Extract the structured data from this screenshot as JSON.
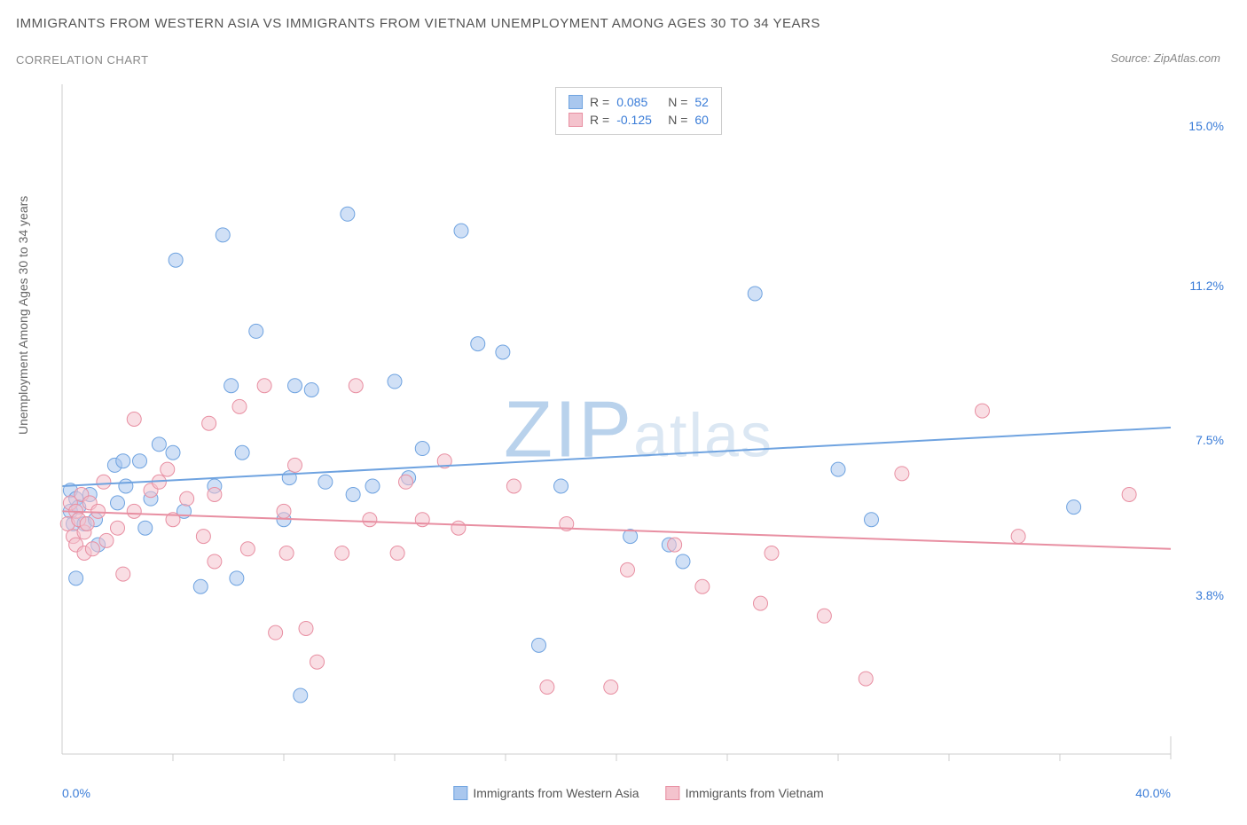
{
  "title": "IMMIGRANTS FROM WESTERN ASIA VS IMMIGRANTS FROM VIETNAM UNEMPLOYMENT AMONG AGES 30 TO 34 YEARS",
  "subtitle": "CORRELATION CHART",
  "source_label": "Source:",
  "source_value": "ZipAtlas.com",
  "y_axis_label": "Unemployment Among Ages 30 to 34 years",
  "watermark_a": "ZIP",
  "watermark_b": "atlas",
  "chart": {
    "type": "scatter",
    "xlim": [
      0,
      40
    ],
    "ylim": [
      0,
      16
    ],
    "x_ticks": [
      {
        "value": 0,
        "label": "0.0%",
        "edge": "left"
      },
      {
        "value": 40,
        "label": "40.0%",
        "edge": "right"
      }
    ],
    "y_ticks": [
      {
        "value": 3.8,
        "label": "3.8%"
      },
      {
        "value": 7.5,
        "label": "7.5%"
      },
      {
        "value": 11.2,
        "label": "11.2%"
      },
      {
        "value": 15.0,
        "label": "15.0%"
      }
    ],
    "x_grid_positions": [
      4,
      8,
      12,
      16,
      20,
      24,
      28,
      32,
      36
    ],
    "background_color": "#ffffff",
    "border_color": "#cccccc",
    "point_radius": 8,
    "point_opacity": 0.55,
    "line_width": 2,
    "series": [
      {
        "key": "western_asia",
        "label": "Immigrants from Western Asia",
        "color_fill": "#a9c7ee",
        "color_stroke": "#6fa3e0",
        "r_value": "0.085",
        "n_value": "52",
        "trend": {
          "y_at_x0": 6.4,
          "y_at_x40": 7.8
        },
        "points": [
          [
            0.3,
            5.8
          ],
          [
            0.3,
            6.3
          ],
          [
            0.4,
            5.5
          ],
          [
            0.5,
            4.2
          ],
          [
            0.5,
            6.1
          ],
          [
            0.6,
            5.9
          ],
          [
            0.8,
            5.5
          ],
          [
            1.0,
            6.2
          ],
          [
            1.2,
            5.6
          ],
          [
            1.3,
            5.0
          ],
          [
            1.9,
            6.9
          ],
          [
            2.0,
            6.0
          ],
          [
            2.2,
            7.0
          ],
          [
            2.3,
            6.4
          ],
          [
            2.8,
            7.0
          ],
          [
            3.0,
            5.4
          ],
          [
            3.2,
            6.1
          ],
          [
            3.5,
            7.4
          ],
          [
            4.0,
            7.2
          ],
          [
            4.1,
            11.8
          ],
          [
            4.4,
            5.8
          ],
          [
            5.0,
            4.0
          ],
          [
            5.5,
            6.4
          ],
          [
            5.8,
            12.4
          ],
          [
            6.1,
            8.8
          ],
          [
            6.3,
            4.2
          ],
          [
            6.5,
            7.2
          ],
          [
            7.0,
            10.1
          ],
          [
            8.0,
            5.6
          ],
          [
            8.2,
            6.6
          ],
          [
            8.4,
            8.8
          ],
          [
            8.6,
            1.4
          ],
          [
            9.0,
            8.7
          ],
          [
            9.5,
            6.5
          ],
          [
            10.3,
            12.9
          ],
          [
            10.5,
            6.2
          ],
          [
            11.2,
            6.4
          ],
          [
            12.0,
            8.9
          ],
          [
            12.5,
            6.6
          ],
          [
            13.0,
            7.3
          ],
          [
            14.4,
            12.5
          ],
          [
            15.0,
            9.8
          ],
          [
            15.9,
            9.6
          ],
          [
            17.2,
            2.6
          ],
          [
            18.0,
            6.4
          ],
          [
            20.5,
            5.2
          ],
          [
            21.9,
            5.0
          ],
          [
            22.4,
            4.6
          ],
          [
            25.0,
            11.0
          ],
          [
            28.0,
            6.8
          ],
          [
            29.2,
            5.6
          ],
          [
            36.5,
            5.9
          ]
        ]
      },
      {
        "key": "vietnam",
        "label": "Immigrants from Vietnam",
        "color_fill": "#f4c3cd",
        "color_stroke": "#e88fa2",
        "r_value": "-0.125",
        "n_value": "60",
        "trend": {
          "y_at_x0": 5.8,
          "y_at_x40": 4.9
        },
        "points": [
          [
            0.2,
            5.5
          ],
          [
            0.3,
            6.0
          ],
          [
            0.4,
            5.2
          ],
          [
            0.5,
            5.8
          ],
          [
            0.5,
            5.0
          ],
          [
            0.6,
            5.6
          ],
          [
            0.7,
            6.2
          ],
          [
            0.8,
            5.3
          ],
          [
            0.8,
            4.8
          ],
          [
            0.9,
            5.5
          ],
          [
            1.0,
            6.0
          ],
          [
            1.1,
            4.9
          ],
          [
            1.3,
            5.8
          ],
          [
            1.5,
            6.5
          ],
          [
            1.6,
            5.1
          ],
          [
            2.0,
            5.4
          ],
          [
            2.2,
            4.3
          ],
          [
            2.6,
            5.8
          ],
          [
            2.6,
            8.0
          ],
          [
            3.2,
            6.3
          ],
          [
            3.5,
            6.5
          ],
          [
            3.8,
            6.8
          ],
          [
            4.0,
            5.6
          ],
          [
            4.5,
            6.1
          ],
          [
            5.1,
            5.2
          ],
          [
            5.3,
            7.9
          ],
          [
            5.5,
            4.6
          ],
          [
            5.5,
            6.2
          ],
          [
            6.4,
            8.3
          ],
          [
            6.7,
            4.9
          ],
          [
            7.3,
            8.8
          ],
          [
            7.7,
            2.9
          ],
          [
            8.0,
            5.8
          ],
          [
            8.1,
            4.8
          ],
          [
            8.4,
            6.9
          ],
          [
            8.8,
            3.0
          ],
          [
            9.2,
            2.2
          ],
          [
            10.1,
            4.8
          ],
          [
            10.6,
            8.8
          ],
          [
            11.1,
            5.6
          ],
          [
            12.1,
            4.8
          ],
          [
            12.4,
            6.5
          ],
          [
            13.0,
            5.6
          ],
          [
            13.8,
            7.0
          ],
          [
            14.3,
            5.4
          ],
          [
            16.3,
            6.4
          ],
          [
            17.5,
            1.6
          ],
          [
            18.2,
            5.5
          ],
          [
            19.8,
            1.6
          ],
          [
            20.4,
            4.4
          ],
          [
            22.1,
            5.0
          ],
          [
            23.1,
            4.0
          ],
          [
            25.2,
            3.6
          ],
          [
            25.6,
            4.8
          ],
          [
            27.5,
            3.3
          ],
          [
            29.0,
            1.8
          ],
          [
            30.3,
            6.7
          ],
          [
            33.2,
            8.2
          ],
          [
            34.5,
            5.2
          ],
          [
            38.5,
            6.2
          ]
        ]
      }
    ]
  },
  "legend_top": {
    "r_label": "R =",
    "n_label": "N ="
  }
}
